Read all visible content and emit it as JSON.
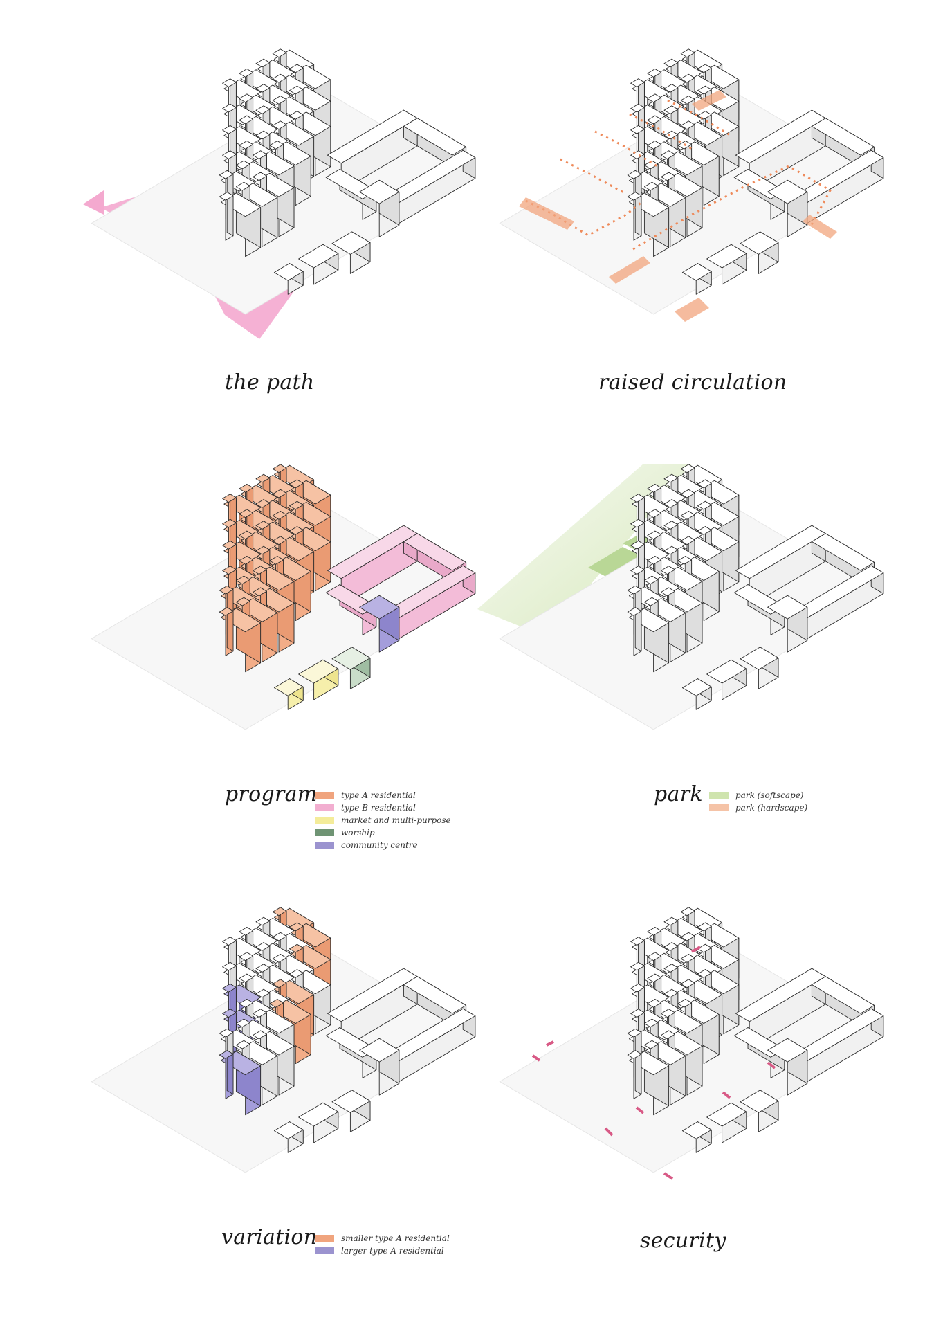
{
  "panels": [
    {
      "id": "path",
      "title": "the path",
      "legend": []
    },
    {
      "id": "raised",
      "title": "raised circulation",
      "legend": []
    },
    {
      "id": "program",
      "title": "program",
      "legend": [
        {
          "label": "type A residential",
          "color": "#f0a47e"
        },
        {
          "label": "type B residential",
          "color": "#f2aed0"
        },
        {
          "label": "market and multi-purpose",
          "color": "#f4ec9a"
        },
        {
          "label": "worship",
          "color": "#6f9474"
        },
        {
          "label": "community centre",
          "color": "#9b93cf"
        }
      ]
    },
    {
      "id": "park",
      "title": "park",
      "legend": [
        {
          "label": "park (softscape)",
          "color": "#cfe4ae"
        },
        {
          "label": "park (hardscape)",
          "color": "#f5c3a7"
        }
      ]
    },
    {
      "id": "variation",
      "title": "variation",
      "legend": [
        {
          "label": "smaller type A residential",
          "color": "#f0a47e"
        },
        {
          "label": "larger type A residential",
          "color": "#9b93cf"
        }
      ]
    },
    {
      "id": "security",
      "title": "security",
      "legend": []
    }
  ]
}
